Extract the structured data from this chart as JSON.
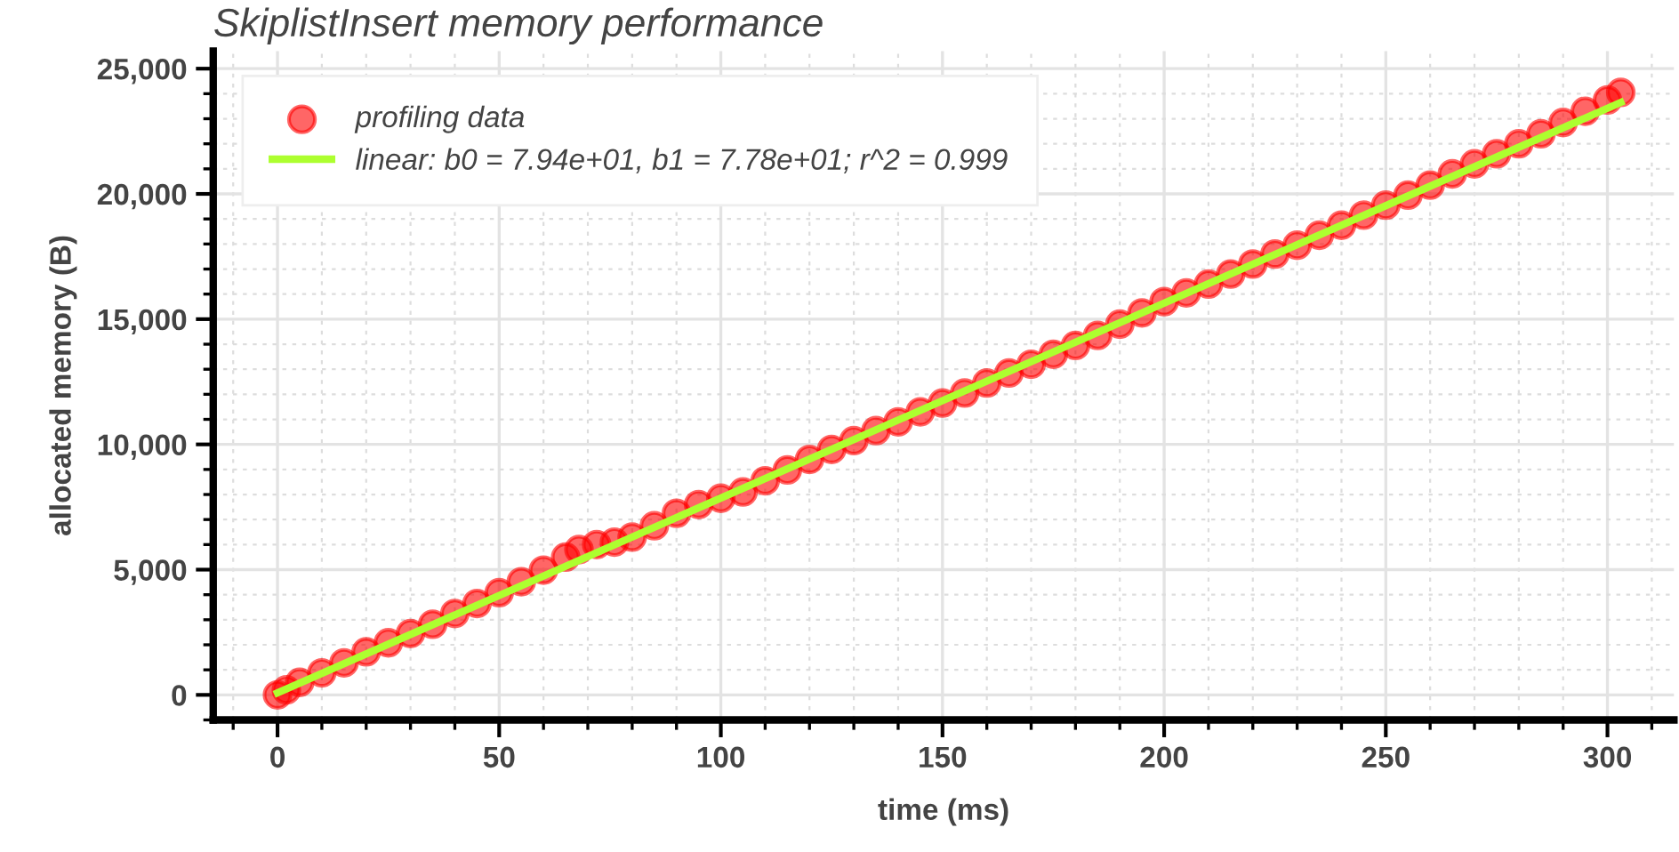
{
  "chart_data": {
    "type": "scatter",
    "title": "SkiplistInsert memory performance",
    "xlabel": "time (ms)",
    "ylabel": "allocated memory (B)",
    "xlim": [
      -14.5,
      315
    ],
    "ylim": [
      -1000,
      25700
    ],
    "xticks": [
      0,
      50,
      100,
      150,
      200,
      250,
      300
    ],
    "yticks": [
      {
        "value": 0,
        "label": "0"
      },
      {
        "value": 5000,
        "label": "5,000"
      },
      {
        "value": 10000,
        "label": "10,000"
      },
      {
        "value": 15000,
        "label": "15,000"
      },
      {
        "value": 20000,
        "label": "20,000"
      },
      {
        "value": 25000,
        "label": "25,000"
      }
    ],
    "grid": true,
    "legend": "top left",
    "series": [
      {
        "name": "profiling data",
        "marker": "circle",
        "color": "#ff0000",
        "x": [
          0,
          2,
          5,
          10,
          15,
          20,
          25,
          30,
          35,
          40,
          45,
          50,
          55,
          60,
          65,
          68,
          72,
          76,
          80,
          85,
          90,
          95,
          100,
          105,
          110,
          115,
          120,
          125,
          130,
          135,
          140,
          145,
          150,
          155,
          160,
          165,
          170,
          175,
          180,
          185,
          190,
          195,
          200,
          205,
          210,
          215,
          220,
          225,
          230,
          235,
          240,
          245,
          250,
          255,
          260,
          265,
          270,
          275,
          280,
          285,
          290,
          295,
          300,
          303
        ],
        "values": [
          0,
          200,
          500,
          880,
          1280,
          1720,
          2080,
          2450,
          2820,
          3250,
          3650,
          4080,
          4520,
          4980,
          5500,
          5800,
          6000,
          6100,
          6300,
          6750,
          7250,
          7600,
          7850,
          8100,
          8550,
          8980,
          9400,
          9800,
          10150,
          10550,
          10900,
          11300,
          11650,
          12050,
          12450,
          12850,
          13200,
          13600,
          13950,
          14350,
          14800,
          15250,
          15700,
          16050,
          16400,
          16800,
          17200,
          17600,
          17950,
          18350,
          18750,
          19150,
          19550,
          19950,
          20350,
          20800,
          21200,
          21600,
          22000,
          22400,
          22850,
          23300,
          23750,
          24050
        ]
      },
      {
        "name": "linear: b0 = 7.94e+01, b1 = 7.78e+01; r^2 = 0.999",
        "type": "line",
        "line_style": "solid",
        "color": "#adff2f",
        "x": [
          0,
          303
        ],
        "values": [
          80,
          23650
        ]
      }
    ]
  }
}
